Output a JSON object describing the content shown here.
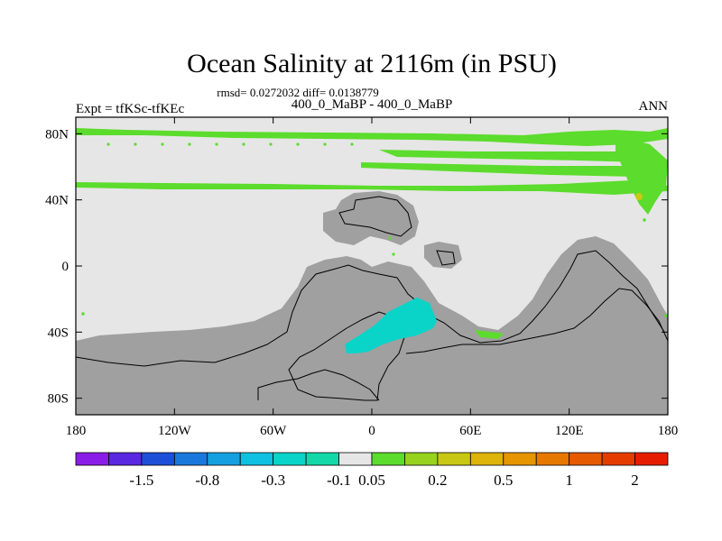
{
  "chart_data": {
    "type": "heatmap",
    "title": "Ocean Salinity at 2116m (in PSU)",
    "stats": "rmsd= 0.0272032 diff= 0.0138779",
    "left_label": "Expt = tfKSc-tfKEc",
    "center_label": "400_0_MaBP - 400_0_MaBP",
    "right_label": "ANN",
    "x_ticks": [
      "180",
      "120W",
      "60W",
      "0",
      "60E",
      "120E",
      "180"
    ],
    "x_tick_values": [
      -180,
      -120,
      -60,
      0,
      60,
      120,
      180
    ],
    "y_ticks": [
      "80N",
      "40N",
      "0",
      "40S",
      "80S"
    ],
    "y_tick_values": [
      80,
      40,
      0,
      -40,
      -80
    ],
    "xlim": [
      -180,
      180
    ],
    "ylim": [
      -90,
      90
    ],
    "colorbar": {
      "colors": [
        "#8a1ee6",
        "#5a28e0",
        "#1e4fd8",
        "#1a78dc",
        "#14a0e0",
        "#10c0e0",
        "#0ad4c8",
        "#12d8a8",
        "#e6e6e6",
        "#5cdc2c",
        "#96d21e",
        "#c8c814",
        "#dcb40a",
        "#e69600",
        "#e67800",
        "#e65a00",
        "#e63c00",
        "#e61e00"
      ],
      "labels": [
        "-1.5",
        "-0.8",
        "-0.3",
        "-0.1",
        "0.05",
        "0.2",
        "0.5",
        "1",
        "2"
      ],
      "label_boundary_index": [
        2,
        4,
        6,
        8,
        9,
        11,
        13,
        15,
        17
      ]
    },
    "fields": {
      "ocean_near_zero": "#e6e6e6",
      "land_mask": "#a0a0a0",
      "positive_anomaly": "#5cdc2c",
      "negative_anomaly": "#0ad4c8",
      "local_max": "#c8c814"
    }
  }
}
